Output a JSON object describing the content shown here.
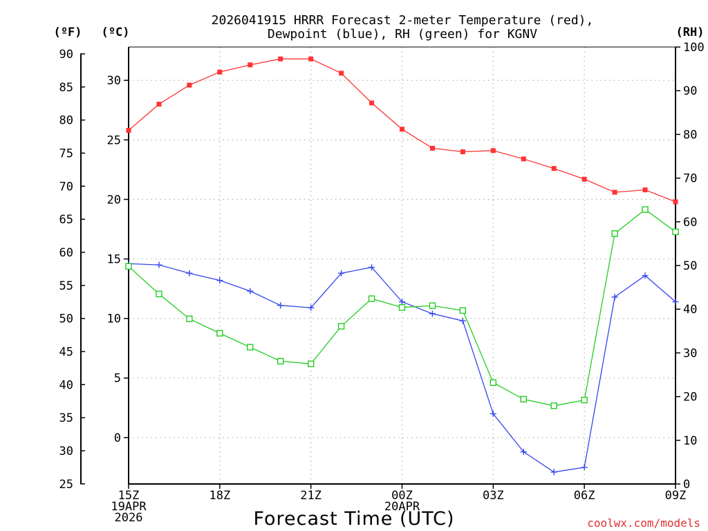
{
  "chart_data": {
    "type": "line",
    "title_lines": [
      "2026041915 HRRR Forecast 2-meter Temperature (red),",
      "Dewpoint (blue), RH (green) for KGNV"
    ],
    "xlabel": "Forecast Time (UTC)",
    "credit": "coolwx.com/models",
    "units": {
      "fahrenheit": "(ºF)",
      "celsius": "(ºC)",
      "rh": "(RH)"
    },
    "x_tick_labels": [
      {
        "hour": 0,
        "lines": [
          "15Z",
          "19APR",
          "2026"
        ]
      },
      {
        "hour": 3,
        "lines": [
          "18Z"
        ]
      },
      {
        "hour": 6,
        "lines": [
          "21Z"
        ]
      },
      {
        "hour": 9,
        "lines": [
          "00Z",
          "20APR"
        ]
      },
      {
        "hour": 12,
        "lines": [
          "03Z"
        ]
      },
      {
        "hour": 15,
        "lines": [
          "06Z"
        ]
      },
      {
        "hour": 18,
        "lines": [
          "09Z"
        ]
      }
    ],
    "xlim": [
      0,
      18
    ],
    "ylim_celsius": [
      -3.9,
      32.8
    ],
    "ylim_rh": [
      0,
      100
    ],
    "fahrenheit_ticks": [
      "25",
      "30",
      "35",
      "40",
      "45",
      "50",
      "55",
      "60",
      "65",
      "70",
      "75",
      "80",
      "85",
      "90"
    ],
    "celsius_ticks": [
      "0",
      "5",
      "10",
      "15",
      "20",
      "25",
      "30"
    ],
    "rh_ticks": [
      "0",
      "10",
      "20",
      "30",
      "40",
      "50",
      "60",
      "70",
      "80",
      "90",
      "100"
    ],
    "gridlines": true,
    "hours": [
      0,
      1,
      2,
      3,
      4,
      5,
      6,
      7,
      8,
      9,
      10,
      11,
      12,
      13,
      14,
      15,
      16,
      17,
      18
    ],
    "series": [
      {
        "name": "2-meter Temperature",
        "axis": "celsius",
        "color": "#ff3333",
        "marker": "filled-square",
        "values": [
          25.8,
          28.0,
          29.6,
          30.7,
          31.3,
          31.8,
          31.8,
          30.6,
          28.1,
          25.9,
          24.3,
          24.0,
          24.1,
          23.4,
          22.6,
          21.7,
          20.6,
          20.8,
          19.8
        ]
      },
      {
        "name": "Dewpoint",
        "axis": "celsius",
        "color": "#3344ee",
        "marker": "plus",
        "values": [
          14.6,
          14.5,
          13.8,
          13.2,
          12.3,
          11.1,
          10.9,
          13.8,
          14.3,
          11.4,
          10.4,
          9.8,
          2.0,
          -1.2,
          -2.9,
          -2.5,
          11.8,
          13.6,
          11.4
        ]
      },
      {
        "name": "Relative Humidity",
        "axis": "rh",
        "color": "#22cc22",
        "marker": "open-square",
        "values": [
          49.8,
          43.5,
          37.8,
          34.5,
          31.3,
          28.1,
          27.5,
          36.1,
          42.4,
          40.4,
          40.8,
          39.7,
          23.2,
          19.4,
          17.9,
          19.2,
          57.3,
          62.8,
          57.7
        ]
      }
    ]
  }
}
